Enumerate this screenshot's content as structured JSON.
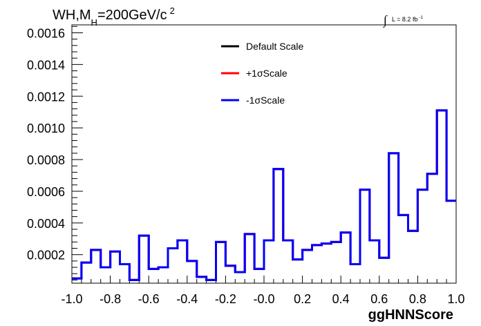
{
  "chart_data": {
    "type": "line",
    "title": "WH,M_H=200GeV/c^2",
    "title_parts": {
      "main": "WH,M",
      "sub": "H",
      "rest": "=200GeV/c",
      "sup": "2"
    },
    "lumi_label": "L = 8.2 fb",
    "lumi_sup": "-1",
    "lumi_integral": "∫",
    "xlabel": "ggHNNScore",
    "ylabel": "",
    "xlim": [
      -1.0,
      1.0
    ],
    "ylim": [
      2e-05,
      0.00165
    ],
    "x_ticks": [
      "-1.0",
      "-0.8",
      "-0.6",
      "-0.4",
      "-0.2",
      "-0.0",
      "0.2",
      "0.4",
      "0.6",
      "0.8",
      "1.0"
    ],
    "x_tick_values": [
      -1.0,
      -0.8,
      -0.6,
      -0.4,
      -0.2,
      0.0,
      0.2,
      0.4,
      0.6,
      0.8,
      1.0
    ],
    "y_ticks": [
      "0.0002",
      "0.0004",
      "0.0006",
      "0.0008",
      "0.0010",
      "0.0012",
      "0.0014",
      "0.0016"
    ],
    "y_tick_values": [
      0.0002,
      0.0004,
      0.0006,
      0.0008,
      0.001,
      0.0012,
      0.0014,
      0.0016
    ],
    "bin_edges_start": -1.0,
    "bin_width": 0.05,
    "series": [
      {
        "name": "Default Scale",
        "color": "#000000",
        "values": [
          5e-05,
          0.00015,
          0.00023,
          0.00012,
          0.00022,
          0.00014,
          4e-05,
          0.00032,
          0.00011,
          0.00012,
          0.00024,
          0.00029,
          0.00016,
          6e-05,
          4e-05,
          0.00028,
          0.00013,
          9e-05,
          0.00033,
          0.00011,
          0.00029,
          0.00074,
          0.00029,
          0.00017,
          0.00023,
          0.00026,
          0.00027,
          0.00028,
          0.00034,
          0.00014,
          0.00061,
          0.00029,
          0.00018,
          0.00084,
          0.00045,
          0.00035,
          0.00061,
          0.00071,
          0.00111,
          0.00054
        ]
      },
      {
        "name": "+1σScale",
        "color": "#ff0000",
        "values": [
          5e-05,
          0.00015,
          0.00023,
          0.00012,
          0.00022,
          0.00014,
          4e-05,
          0.00032,
          0.00011,
          0.00012,
          0.00024,
          0.00029,
          0.00016,
          6e-05,
          4e-05,
          0.00028,
          0.00013,
          9e-05,
          0.00033,
          0.00011,
          0.00029,
          0.00074,
          0.00029,
          0.00017,
          0.00023,
          0.00026,
          0.00027,
          0.00028,
          0.00034,
          0.00014,
          0.00061,
          0.00029,
          0.00018,
          0.00084,
          0.00045,
          0.00035,
          0.00061,
          0.00071,
          0.00111,
          0.00054
        ]
      },
      {
        "name": "-1σScale",
        "color": "#0000ff",
        "values": [
          5e-05,
          0.00015,
          0.00023,
          0.00012,
          0.00022,
          0.00014,
          4e-05,
          0.00032,
          0.00011,
          0.00012,
          0.00024,
          0.00029,
          0.00016,
          6e-05,
          4e-05,
          0.00028,
          0.00013,
          9e-05,
          0.00033,
          0.00011,
          0.00029,
          0.00074,
          0.00029,
          0.00017,
          0.00023,
          0.00026,
          0.00027,
          0.00028,
          0.00034,
          0.00014,
          0.00061,
          0.00029,
          0.00018,
          0.00084,
          0.00045,
          0.00035,
          0.00061,
          0.00071,
          0.00111,
          0.00054
        ]
      }
    ],
    "legend_position": "top-center",
    "grid": false
  }
}
